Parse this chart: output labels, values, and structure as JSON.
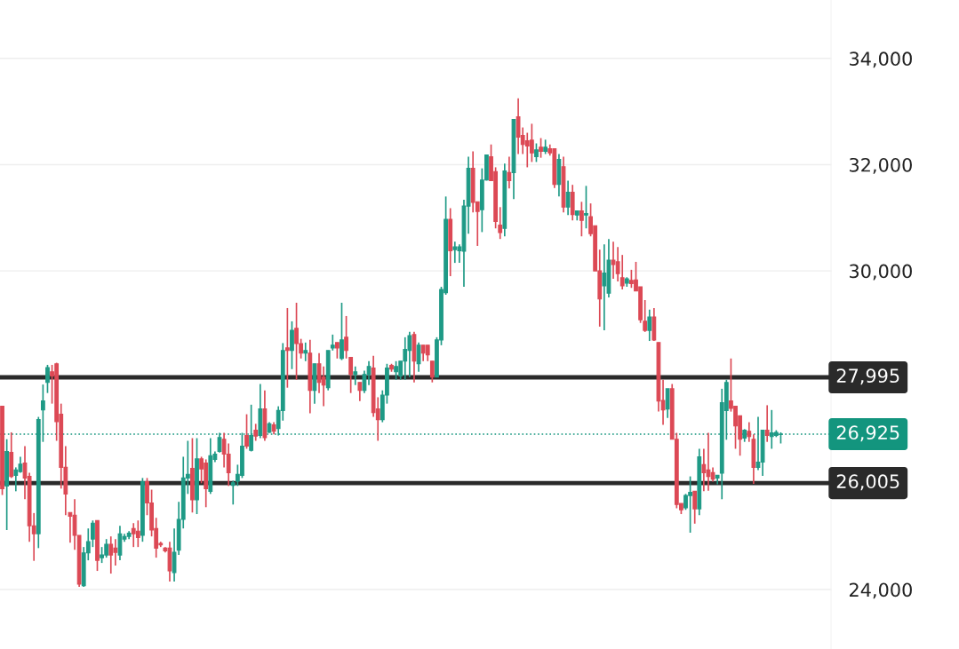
{
  "chart_data": {
    "type": "candlestick",
    "colors": [
      "#dc4955",
      "#1f9a86",
      "#dc4955",
      "#1f9a86",
      "#1f9a86",
      "#dc4955",
      "#dc4955",
      "#dc4955",
      "#1f9a86",
      "#1f9a86",
      "#1f9a86",
      "#dc4955",
      "#dc4955",
      "#dc4955",
      "#dc4955",
      "#dc4955",
      "#dc4955",
      "#dc4955",
      "#1f9a86",
      "#1f9a86",
      "#1f9a86",
      "#dc4955",
      "#1f9a86",
      "#1f9a86",
      "#dc4955",
      "#dc4955",
      "#1f9a86",
      "#1f9a86",
      "#1f9a86",
      "#dc4955",
      "#dc4955",
      "#1f9a86",
      "#dc4955",
      "#dc4955",
      "#dc4955",
      "#dc4955",
      "#dc4955",
      "#dc4955",
      "#1f9a86",
      "#1f9a86",
      "#1f9a86",
      "#1f9a86",
      "#dc4955",
      "#1f9a86",
      "#dc4955",
      "#dc4955",
      "#1f9a86",
      "#1f9a86",
      "#1f9a86",
      "#dc4955",
      "#dc4955",
      "#1f9a86",
      "#1f9a86",
      "#1f9a86",
      "#dc4955",
      "#1f9a86",
      "#dc4955",
      "#1f9a86",
      "#dc4955",
      "#1f9a86",
      "#dc4955",
      "#1f9a86",
      "#1f9a86",
      "#dc4955",
      "#1f9a86",
      "#dc4955",
      "#dc4955",
      "#1f9a86",
      "#dc4955",
      "#1f9a86",
      "#dc4955",
      "#dc4955",
      "#1f9a86",
      "#1f9a86",
      "#dc4955",
      "#1f9a86",
      "#dc4955",
      "#dc4955",
      "#1f9a86",
      "#dc4955",
      "#1f9a86",
      "#1f9a86",
      "#dc4955",
      "#dc4955",
      "#1f9a86",
      "#1f9a86",
      "#dc4955",
      "#1f9a86",
      "#1f9a86",
      "#1f9a86",
      "#1f9a86",
      "#dc4955",
      "#1f9a86",
      "#dc4955",
      "#dc4955",
      "#dc4955",
      "#1f9a86",
      "#1f9a86",
      "#1f9a86",
      "#dc4955",
      "#1f9a86",
      "#1f9a86",
      "#1f9a86",
      "#1f9a86",
      "#dc4955",
      "#dc4955",
      "#1f9a86",
      "#1f9a86",
      "#dc4955",
      "#dc4955",
      "#dc4955",
      "#1f9a86",
      "#dc4955",
      "#1f9a86",
      "#dc4955",
      "#dc4955",
      "#dc4955",
      "#dc4955",
      "#1f9a86",
      "#dc4955",
      "#1f9a86",
      "#dc4955",
      "#dc4955",
      "#1f9a86",
      "#dc4955",
      "#1f9a86",
      "#dc4955",
      "#1f9a86",
      "#dc4955",
      "#1f9a86",
      "#dc4955",
      "#dc4955",
      "#dc4955",
      "#1f9a86",
      "#1f9a86",
      "#dc4955",
      "#dc4955",
      "#dc4955",
      "#1f9a86",
      "#dc4955",
      "#dc4955",
      "#dc4955",
      "#dc4955",
      "#1f9a86",
      "#dc4955",
      "#dc4955",
      "#dc4955",
      "#1f9a86",
      "#dc4955",
      "#dc4955",
      "#dc4955",
      "#1f9a86",
      "#1f9a86",
      "#dc4955",
      "#1f9a86",
      "#dc4955",
      "#dc4955",
      "#dc4955",
      "#1f9a86",
      "#1f9a86",
      "#1f9a86",
      "#dc4955",
      "#dc4955",
      "#dc4955",
      "#1f9a86",
      "#dc4955",
      "#dc4955",
      "#1f9a86",
      "#1f9a86",
      "#dc4955",
      "#1f9a86",
      "#1f9a86",
      "#1f9a86"
    ],
    "ohlc": [
      [
        27450,
        27450,
        25780,
        25900
      ],
      [
        25950,
        26830,
        25120,
        26600
      ],
      [
        26580,
        26960,
        26100,
        26130
      ],
      [
        26150,
        26300,
        25850,
        26250
      ],
      [
        26220,
        26500,
        26200,
        26360
      ],
      [
        26380,
        26700,
        25700,
        26100
      ],
      [
        26130,
        26200,
        24900,
        25200
      ],
      [
        25200,
        25440,
        24540,
        25050
      ],
      [
        25050,
        27250,
        24780,
        27200
      ],
      [
        27380,
        27860,
        26780,
        27550
      ],
      [
        27900,
        28230,
        27700,
        28180
      ],
      [
        28100,
        28230,
        27500,
        28020
      ],
      [
        28250,
        28270,
        26800,
        27160
      ],
      [
        27300,
        27500,
        25900,
        26300
      ],
      [
        26300,
        26700,
        25400,
        25800
      ],
      [
        25450,
        25450,
        24880,
        25380
      ],
      [
        25400,
        25700,
        24750,
        25020
      ],
      [
        25020,
        25020,
        24050,
        24100
      ],
      [
        24070,
        24800,
        24050,
        24690
      ],
      [
        24690,
        25150,
        24550,
        24900
      ],
      [
        24950,
        25300,
        24800,
        25250
      ],
      [
        25300,
        25300,
        24350,
        24550
      ],
      [
        24600,
        24800,
        24500,
        24650
      ],
      [
        24650,
        24950,
        24600,
        24850
      ],
      [
        24850,
        25000,
        24300,
        24650
      ],
      [
        24780,
        24950,
        24450,
        24700
      ],
      [
        24650,
        25200,
        24550,
        25050
      ],
      [
        24950,
        25050,
        24900,
        25000
      ],
      [
        25000,
        25100,
        24950,
        25060
      ],
      [
        25150,
        25250,
        24800,
        25050
      ],
      [
        25100,
        25300,
        24800,
        24980
      ],
      [
        25020,
        26100,
        24900,
        26030
      ],
      [
        26030,
        26100,
        25400,
        25630
      ],
      [
        25630,
        25880,
        25000,
        25120
      ],
      [
        25150,
        25350,
        24600,
        24780
      ],
      [
        24870,
        24900,
        24800,
        24840
      ],
      [
        24780,
        24800,
        24700,
        24730
      ],
      [
        24780,
        24900,
        24150,
        24350
      ],
      [
        24320,
        25150,
        24150,
        24700
      ],
      [
        24740,
        25650,
        24650,
        25320
      ],
      [
        25320,
        26500,
        25150,
        26100
      ],
      [
        26100,
        26800,
        25800,
        26170
      ],
      [
        26280,
        26850,
        25450,
        25690
      ],
      [
        25690,
        26850,
        25420,
        26460
      ],
      [
        26460,
        26500,
        26000,
        26270
      ],
      [
        26380,
        26450,
        25550,
        25900
      ],
      [
        25850,
        26850,
        25800,
        26520
      ],
      [
        26450,
        26600,
        26400,
        26550
      ],
      [
        26600,
        26950,
        26580,
        26860
      ],
      [
        26830,
        26950,
        26300,
        26550
      ],
      [
        26550,
        26750,
        25950,
        26200
      ],
      [
        25960,
        26050,
        25600,
        26010
      ],
      [
        26040,
        26350,
        25950,
        26170
      ],
      [
        26150,
        26950,
        26100,
        26700
      ],
      [
        26900,
        27300,
        26650,
        26700
      ],
      [
        26620,
        27480,
        26600,
        26900
      ],
      [
        27000,
        27120,
        26800,
        26890
      ],
      [
        26900,
        27870,
        26850,
        27400
      ],
      [
        27400,
        27750,
        26800,
        26860
      ],
      [
        26960,
        27150,
        26950,
        27120
      ],
      [
        27100,
        27150,
        26920,
        26980
      ],
      [
        27030,
        27450,
        26900,
        27370
      ],
      [
        27370,
        28640,
        27180,
        28500
      ],
      [
        28550,
        29300,
        27800,
        28500
      ],
      [
        28500,
        29050,
        28150,
        28880
      ],
      [
        28920,
        29400,
        27950,
        28630
      ],
      [
        28630,
        28720,
        28350,
        28450
      ],
      [
        28450,
        28650,
        28300,
        28500
      ],
      [
        28450,
        28700,
        27320,
        27750
      ],
      [
        27750,
        28250,
        27500,
        28250
      ],
      [
        28250,
        28450,
        27700,
        27900
      ],
      [
        28000,
        28200,
        27450,
        27850
      ],
      [
        27800,
        28500,
        27750,
        28500
      ],
      [
        28550,
        28800,
        28500,
        28600
      ],
      [
        28650,
        28650,
        28350,
        28550
      ],
      [
        28350,
        29400,
        28320,
        28700
      ],
      [
        28750,
        29150,
        28350,
        28500
      ],
      [
        28370,
        28370,
        27700,
        28050
      ],
      [
        28050,
        28200,
        27850,
        28100
      ],
      [
        27900,
        27900,
        27550,
        27750
      ],
      [
        27750,
        28120,
        27700,
        28050
      ],
      [
        28050,
        28300,
        27850,
        28200
      ],
      [
        28170,
        28400,
        27250,
        27330
      ],
      [
        27400,
        27620,
        26800,
        27200
      ],
      [
        27200,
        27750,
        27150,
        27660
      ],
      [
        27660,
        28250,
        27500,
        28170
      ],
      [
        28220,
        28250,
        28100,
        28150
      ],
      [
        28100,
        28300,
        27950,
        28200
      ],
      [
        28020,
        28300,
        27950,
        28300
      ],
      [
        28300,
        28750,
        27950,
        28520
      ],
      [
        28500,
        28850,
        28000,
        28780
      ],
      [
        28800,
        28850,
        27900,
        28300
      ],
      [
        28250,
        28650,
        28100,
        28600
      ],
      [
        28600,
        28600,
        28300,
        28450
      ],
      [
        28600,
        28600,
        28300,
        28420
      ],
      [
        28300,
        28300,
        27900,
        28000
      ],
      [
        28000,
        28750,
        28000,
        28700
      ],
      [
        28700,
        29700,
        28600,
        29650
      ],
      [
        29590,
        31400,
        29550,
        30970
      ],
      [
        30970,
        31180,
        29900,
        30380
      ],
      [
        30400,
        30550,
        30150,
        30450
      ],
      [
        30380,
        30500,
        30150,
        30450
      ],
      [
        30370,
        31340,
        29700,
        31220
      ],
      [
        31220,
        32150,
        30700,
        31930
      ],
      [
        31930,
        32250,
        31100,
        31290
      ],
      [
        31300,
        31300,
        30470,
        31120
      ],
      [
        31150,
        31930,
        30730,
        31710
      ],
      [
        31710,
        32180,
        31700,
        32180
      ],
      [
        32150,
        32380,
        31700,
        31700
      ],
      [
        31870,
        31950,
        30800,
        30930
      ],
      [
        30860,
        31200,
        30600,
        30720
      ],
      [
        30800,
        32020,
        30650,
        31880
      ],
      [
        31850,
        32150,
        31550,
        31700
      ],
      [
        31850,
        32850,
        31350,
        32850
      ],
      [
        32900,
        33250,
        32200,
        32520
      ],
      [
        32550,
        32700,
        32200,
        32380
      ],
      [
        32450,
        32600,
        31950,
        32350
      ],
      [
        32460,
        32770,
        32050,
        32220
      ],
      [
        32150,
        32400,
        32050,
        32280
      ],
      [
        32330,
        32500,
        32130,
        32250
      ],
      [
        32250,
        32470,
        32200,
        32330
      ],
      [
        32300,
        32380,
        32170,
        32220
      ],
      [
        32300,
        32300,
        31560,
        31630
      ],
      [
        31630,
        32200,
        31400,
        32100
      ],
      [
        31960,
        32150,
        31100,
        31200
      ],
      [
        31200,
        31700,
        31050,
        31480
      ],
      [
        31480,
        31620,
        30950,
        31060
      ],
      [
        31050,
        31130,
        30950,
        31130
      ],
      [
        31130,
        31300,
        30650,
        30950
      ],
      [
        31050,
        31600,
        30800,
        31080
      ],
      [
        31020,
        31270,
        30650,
        30700
      ],
      [
        30850,
        30850,
        30000,
        30000
      ],
      [
        30000,
        30400,
        28950,
        29470
      ],
      [
        29720,
        30500,
        28880,
        29960
      ],
      [
        29580,
        30600,
        29500,
        30200
      ],
      [
        30200,
        30550,
        29850,
        30120
      ],
      [
        30170,
        30450,
        29800,
        29950
      ],
      [
        29870,
        30300,
        29650,
        29720
      ],
      [
        29770,
        29880,
        29700,
        29850
      ],
      [
        29820,
        30020,
        29680,
        29760
      ],
      [
        29830,
        30170,
        29620,
        29620
      ],
      [
        29700,
        29700,
        29020,
        29080
      ],
      [
        29050,
        29450,
        28850,
        28880
      ],
      [
        28880,
        29270,
        28680,
        29130
      ],
      [
        29130,
        29300,
        28680,
        28700
      ],
      [
        28650,
        28650,
        27350,
        27550
      ],
      [
        27560,
        27950,
        27100,
        27380
      ],
      [
        27400,
        27780,
        27230,
        27780
      ],
      [
        27780,
        27870,
        26830,
        26830
      ],
      [
        26830,
        26950,
        25530,
        25600
      ],
      [
        25620,
        25620,
        25420,
        25500
      ],
      [
        25540,
        25800,
        25500,
        25770
      ],
      [
        25770,
        26130,
        25070,
        25830
      ],
      [
        25850,
        25850,
        25240,
        25520
      ],
      [
        25520,
        26650,
        25400,
        26500
      ],
      [
        26350,
        26650,
        25850,
        26200
      ],
      [
        26250,
        26950,
        25860,
        26130
      ],
      [
        26200,
        26300,
        26030,
        26080
      ],
      [
        26100,
        26150,
        25980,
        26150
      ],
      [
        26190,
        27780,
        25700,
        27520
      ],
      [
        27370,
        27950,
        26820,
        27900
      ],
      [
        27550,
        28350,
        27350,
        27410
      ],
      [
        27450,
        27450,
        26650,
        27080
      ],
      [
        27270,
        27270,
        26520,
        26830
      ],
      [
        26850,
        27020,
        26780,
        27000
      ],
      [
        26980,
        27150,
        26780,
        26880
      ],
      [
        26830,
        26920,
        25990,
        26300
      ],
      [
        26300,
        27250,
        26250,
        26400
      ],
      [
        26400,
        27000,
        26140,
        27000
      ],
      [
        27000,
        27470,
        26780,
        26900
      ],
      [
        26880,
        27380,
        26650,
        26950
      ],
      [
        26900,
        27000,
        26870,
        26960
      ],
      [
        26920,
        26960,
        26750,
        26925
      ]
    ],
    "categories": [
      null,
      null,
      null,
      null,
      null,
      null,
      null,
      null,
      null,
      null,
      null,
      null,
      null,
      null,
      null,
      null,
      null,
      null,
      null,
      null,
      null,
      null,
      null,
      null,
      null,
      null,
      null,
      null,
      null,
      null,
      null,
      null,
      null,
      null,
      null,
      null,
      null,
      null,
      null,
      null,
      null,
      null,
      null,
      null,
      null,
      null,
      null,
      null,
      null,
      null,
      null,
      null,
      null,
      null,
      null,
      null,
      null,
      null,
      null,
      null,
      null,
      null,
      null,
      null,
      null,
      null,
      null,
      null,
      null,
      null,
      null,
      null,
      null,
      null,
      null,
      null,
      null,
      null,
      null,
      null,
      null,
      null,
      null,
      null,
      null,
      null,
      null,
      null,
      null,
      null,
      null,
      null,
      null,
      null,
      null,
      null,
      null,
      null,
      null,
      null,
      null,
      null,
      null,
      null,
      null,
      null,
      null,
      null,
      null,
      null,
      null,
      null,
      null,
      null,
      null,
      null,
      null,
      null,
      null,
      null,
      null,
      null,
      null,
      null,
      null,
      null,
      null,
      null,
      null,
      null,
      null,
      null,
      null,
      null,
      null,
      null,
      null,
      null,
      null,
      null,
      null,
      null,
      null,
      null,
      null,
      null,
      null,
      null,
      null,
      null,
      null,
      null,
      null,
      null,
      null,
      null,
      null,
      null,
      null,
      null,
      null,
      null,
      null,
      null,
      null,
      null,
      null,
      null,
      null,
      null,
      null,
      null,
      null
    ],
    "ylim": [
      22880,
      35100
    ],
    "yticks": [
      {
        "value": 24000,
        "label": "24,000"
      },
      {
        "value": 30000,
        "label": "30,000"
      },
      {
        "value": 32000,
        "label": "32,000"
      },
      {
        "value": 34000,
        "label": "34,000"
      }
    ],
    "grid": "y",
    "ref_lines": [
      {
        "axis": "y",
        "value": 27995,
        "label": "27,995",
        "color": "#2a2a2a",
        "line_style": "solid"
      },
      {
        "axis": "y",
        "value": 26005,
        "label": "26,005",
        "color": "#2a2a2a",
        "line_style": "solid"
      },
      {
        "axis": "y",
        "value": 26925,
        "label": "26,925",
        "color": "#13957e",
        "line_style": "dotted"
      }
    ]
  }
}
